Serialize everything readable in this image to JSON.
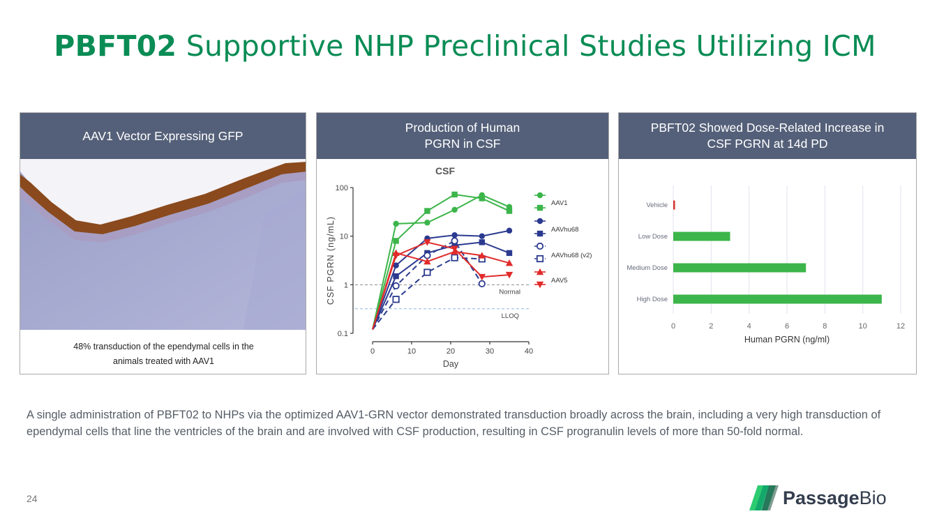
{
  "title": {
    "bold": "PBFT02",
    "rest": " Supportive NHP Preclinical Studies Utilizing ICM"
  },
  "panel1": {
    "header": "AAV1 Vector Expressing GFP",
    "caption_line1": "48% transduction of the ependymal cells in the",
    "caption_line2": "animals treated with AAV1"
  },
  "panel2": {
    "header_line1": "Production of Human",
    "header_line2": "PGRN in CSF"
  },
  "panel3": {
    "header_line1": "PBFT02 Showed Dose-Related Increase in",
    "header_line2": "CSF PGRN at 14d PD"
  },
  "body_text": "A single administration of PBFT02 to NHPs via the optimized AAV1-GRN vector demonstrated transduction broadly across the brain, including a very high transduction of ependymal cells that line the ventricles of the brain and are involved with CSF production, resulting in CSF progranulin levels of more than 50-fold normal.",
  "page_number": "24",
  "logo": {
    "bold": "Passage",
    "rest": "Bio"
  },
  "colors": {
    "title_green": "#0a8c55",
    "header_bg": "#546079",
    "bar_green": "#3cb54a",
    "vehicle_red": "#d9302f"
  },
  "chart_data": [
    {
      "type": "line",
      "title": "CSF",
      "xlabel": "Day",
      "ylabel": "CSF PGRN (ng/mL)",
      "yscale": "log",
      "xlim": [
        0,
        40
      ],
      "ylim": [
        0.1,
        100
      ],
      "xticks": [
        "0",
        "10",
        "20",
        "30",
        "40"
      ],
      "yticks": [
        "0.1",
        "1",
        "10",
        "100"
      ],
      "reference_lines": [
        {
          "label": "Normal",
          "y": 1.0
        },
        {
          "label": "LLOQ",
          "y": 0.32
        }
      ],
      "legend": [
        "AAV1",
        "AAVhu68",
        "AAVhu68 (v2)",
        "AAV5"
      ],
      "series": [
        {
          "group": "AAV1",
          "color": "#3cb54a",
          "marker": "circle",
          "x": [
            0,
            6,
            14,
            21,
            28,
            35
          ],
          "y": [
            0.12,
            18,
            19,
            35,
            70,
            40
          ]
        },
        {
          "group": "AAV1",
          "color": "#3cb54a",
          "marker": "square",
          "x": [
            0,
            6,
            14,
            21,
            28,
            35
          ],
          "y": [
            0.12,
            8,
            33,
            72,
            60,
            33
          ]
        },
        {
          "group": "AAVhu68",
          "color": "#2b3a8f",
          "marker": "circle",
          "x": [
            0,
            6,
            14,
            21,
            28,
            35
          ],
          "y": [
            0.12,
            2.5,
            9,
            10.5,
            10,
            13
          ]
        },
        {
          "group": "AAVhu68",
          "color": "#2b3a8f",
          "marker": "square",
          "x": [
            0,
            6,
            14,
            21,
            28,
            35
          ],
          "y": [
            0.12,
            1.5,
            4.5,
            6.5,
            7.5,
            4.5
          ]
        },
        {
          "group": "AAVhu68 (v2)",
          "color": "#2b3a8f",
          "marker": "open-circle",
          "dashed": true,
          "x": [
            0,
            6,
            14,
            21,
            28
          ],
          "y": [
            0.12,
            0.95,
            4,
            8,
            1.05
          ]
        },
        {
          "group": "AAVhu68 (v2)",
          "color": "#2b3a8f",
          "marker": "open-square",
          "dashed": true,
          "x": [
            0,
            6,
            14,
            21,
            28
          ],
          "y": [
            0.12,
            0.5,
            1.8,
            3.6,
            3.4
          ]
        },
        {
          "group": "AAV5",
          "color": "#e12b2b",
          "marker": "triangle-up",
          "x": [
            0,
            6,
            14,
            21,
            28,
            35
          ],
          "y": [
            0.12,
            4.5,
            3,
            4.8,
            4,
            2.8
          ]
        },
        {
          "group": "AAV5",
          "color": "#e12b2b",
          "marker": "triangle-down",
          "x": [
            0,
            6,
            14,
            21,
            28,
            35
          ],
          "y": [
            0.12,
            4,
            7.5,
            5.5,
            1.45,
            1.6
          ]
        }
      ]
    },
    {
      "type": "bar",
      "orientation": "horizontal",
      "categories": [
        "Vehicle",
        "Low Dose",
        "Medium Dose",
        "High Dose"
      ],
      "values": [
        0.05,
        3,
        7,
        11
      ],
      "xlabel": "Human PGRN (ng/ml)",
      "xlim": [
        0,
        12
      ],
      "xticks": [
        "0",
        "2",
        "4",
        "6",
        "8",
        "10",
        "12"
      ],
      "grid": true
    }
  ]
}
